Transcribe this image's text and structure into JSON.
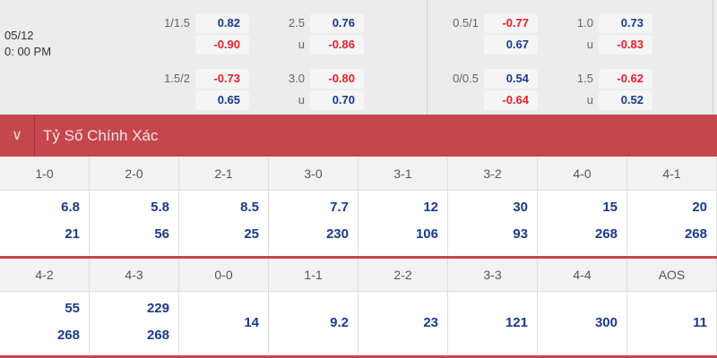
{
  "match": {
    "date": "05/12",
    "time": "0: 00 PM"
  },
  "odds_left": [
    {
      "hcap": "1/1.5",
      "h1": "0.82",
      "h2": "-0.90",
      "ou": "2.5",
      "o1": "0.76",
      "u_label": "u",
      "o2": "-0.86"
    },
    {
      "hcap": "1.5/2",
      "h1": "-0.73",
      "h2": "0.65",
      "ou": "3.0",
      "o1": "-0.80",
      "u_label": "u",
      "o2": "0.70"
    }
  ],
  "odds_right": [
    {
      "hcap": "0.5/1",
      "h1": "-0.77",
      "h2": "0.67",
      "ou": "1.0",
      "o1": "0.73",
      "u_label": "u",
      "o2": "-0.83"
    },
    {
      "hcap": "0/0.5",
      "h1": "0.54",
      "h2": "-0.64",
      "ou": "1.5",
      "o1": "-0.62",
      "u_label": "u",
      "o2": "0.52"
    }
  ],
  "section": {
    "title": "Tỷ Số Chính Xác",
    "icon": "chevron-down-icon"
  },
  "colors": {
    "accent": "#c5474e",
    "positive": "#1a3a8c",
    "negative": "#e8202a"
  },
  "scores": [
    [
      {
        "score": "1-0",
        "v": [
          "6.8",
          "21"
        ]
      },
      {
        "score": "2-0",
        "v": [
          "5.8",
          "56"
        ]
      },
      {
        "score": "2-1",
        "v": [
          "8.5",
          "25"
        ]
      },
      {
        "score": "3-0",
        "v": [
          "7.7",
          "230"
        ]
      },
      {
        "score": "3-1",
        "v": [
          "12",
          "106"
        ]
      },
      {
        "score": "3-2",
        "v": [
          "30",
          "93"
        ]
      },
      {
        "score": "4-0",
        "v": [
          "15",
          "268"
        ]
      },
      {
        "score": "4-1",
        "v": [
          "20",
          "268"
        ]
      }
    ],
    [
      {
        "score": "4-2",
        "v": [
          "55",
          "268"
        ]
      },
      {
        "score": "4-3",
        "v": [
          "229",
          "268"
        ]
      },
      {
        "score": "0-0",
        "v": [
          "14"
        ]
      },
      {
        "score": "1-1",
        "v": [
          "9.2"
        ]
      },
      {
        "score": "2-2",
        "v": [
          "23"
        ]
      },
      {
        "score": "3-3",
        "v": [
          "121"
        ]
      },
      {
        "score": "4-4",
        "v": [
          "300"
        ]
      },
      {
        "score": "AOS",
        "v": [
          "11"
        ]
      }
    ]
  ]
}
